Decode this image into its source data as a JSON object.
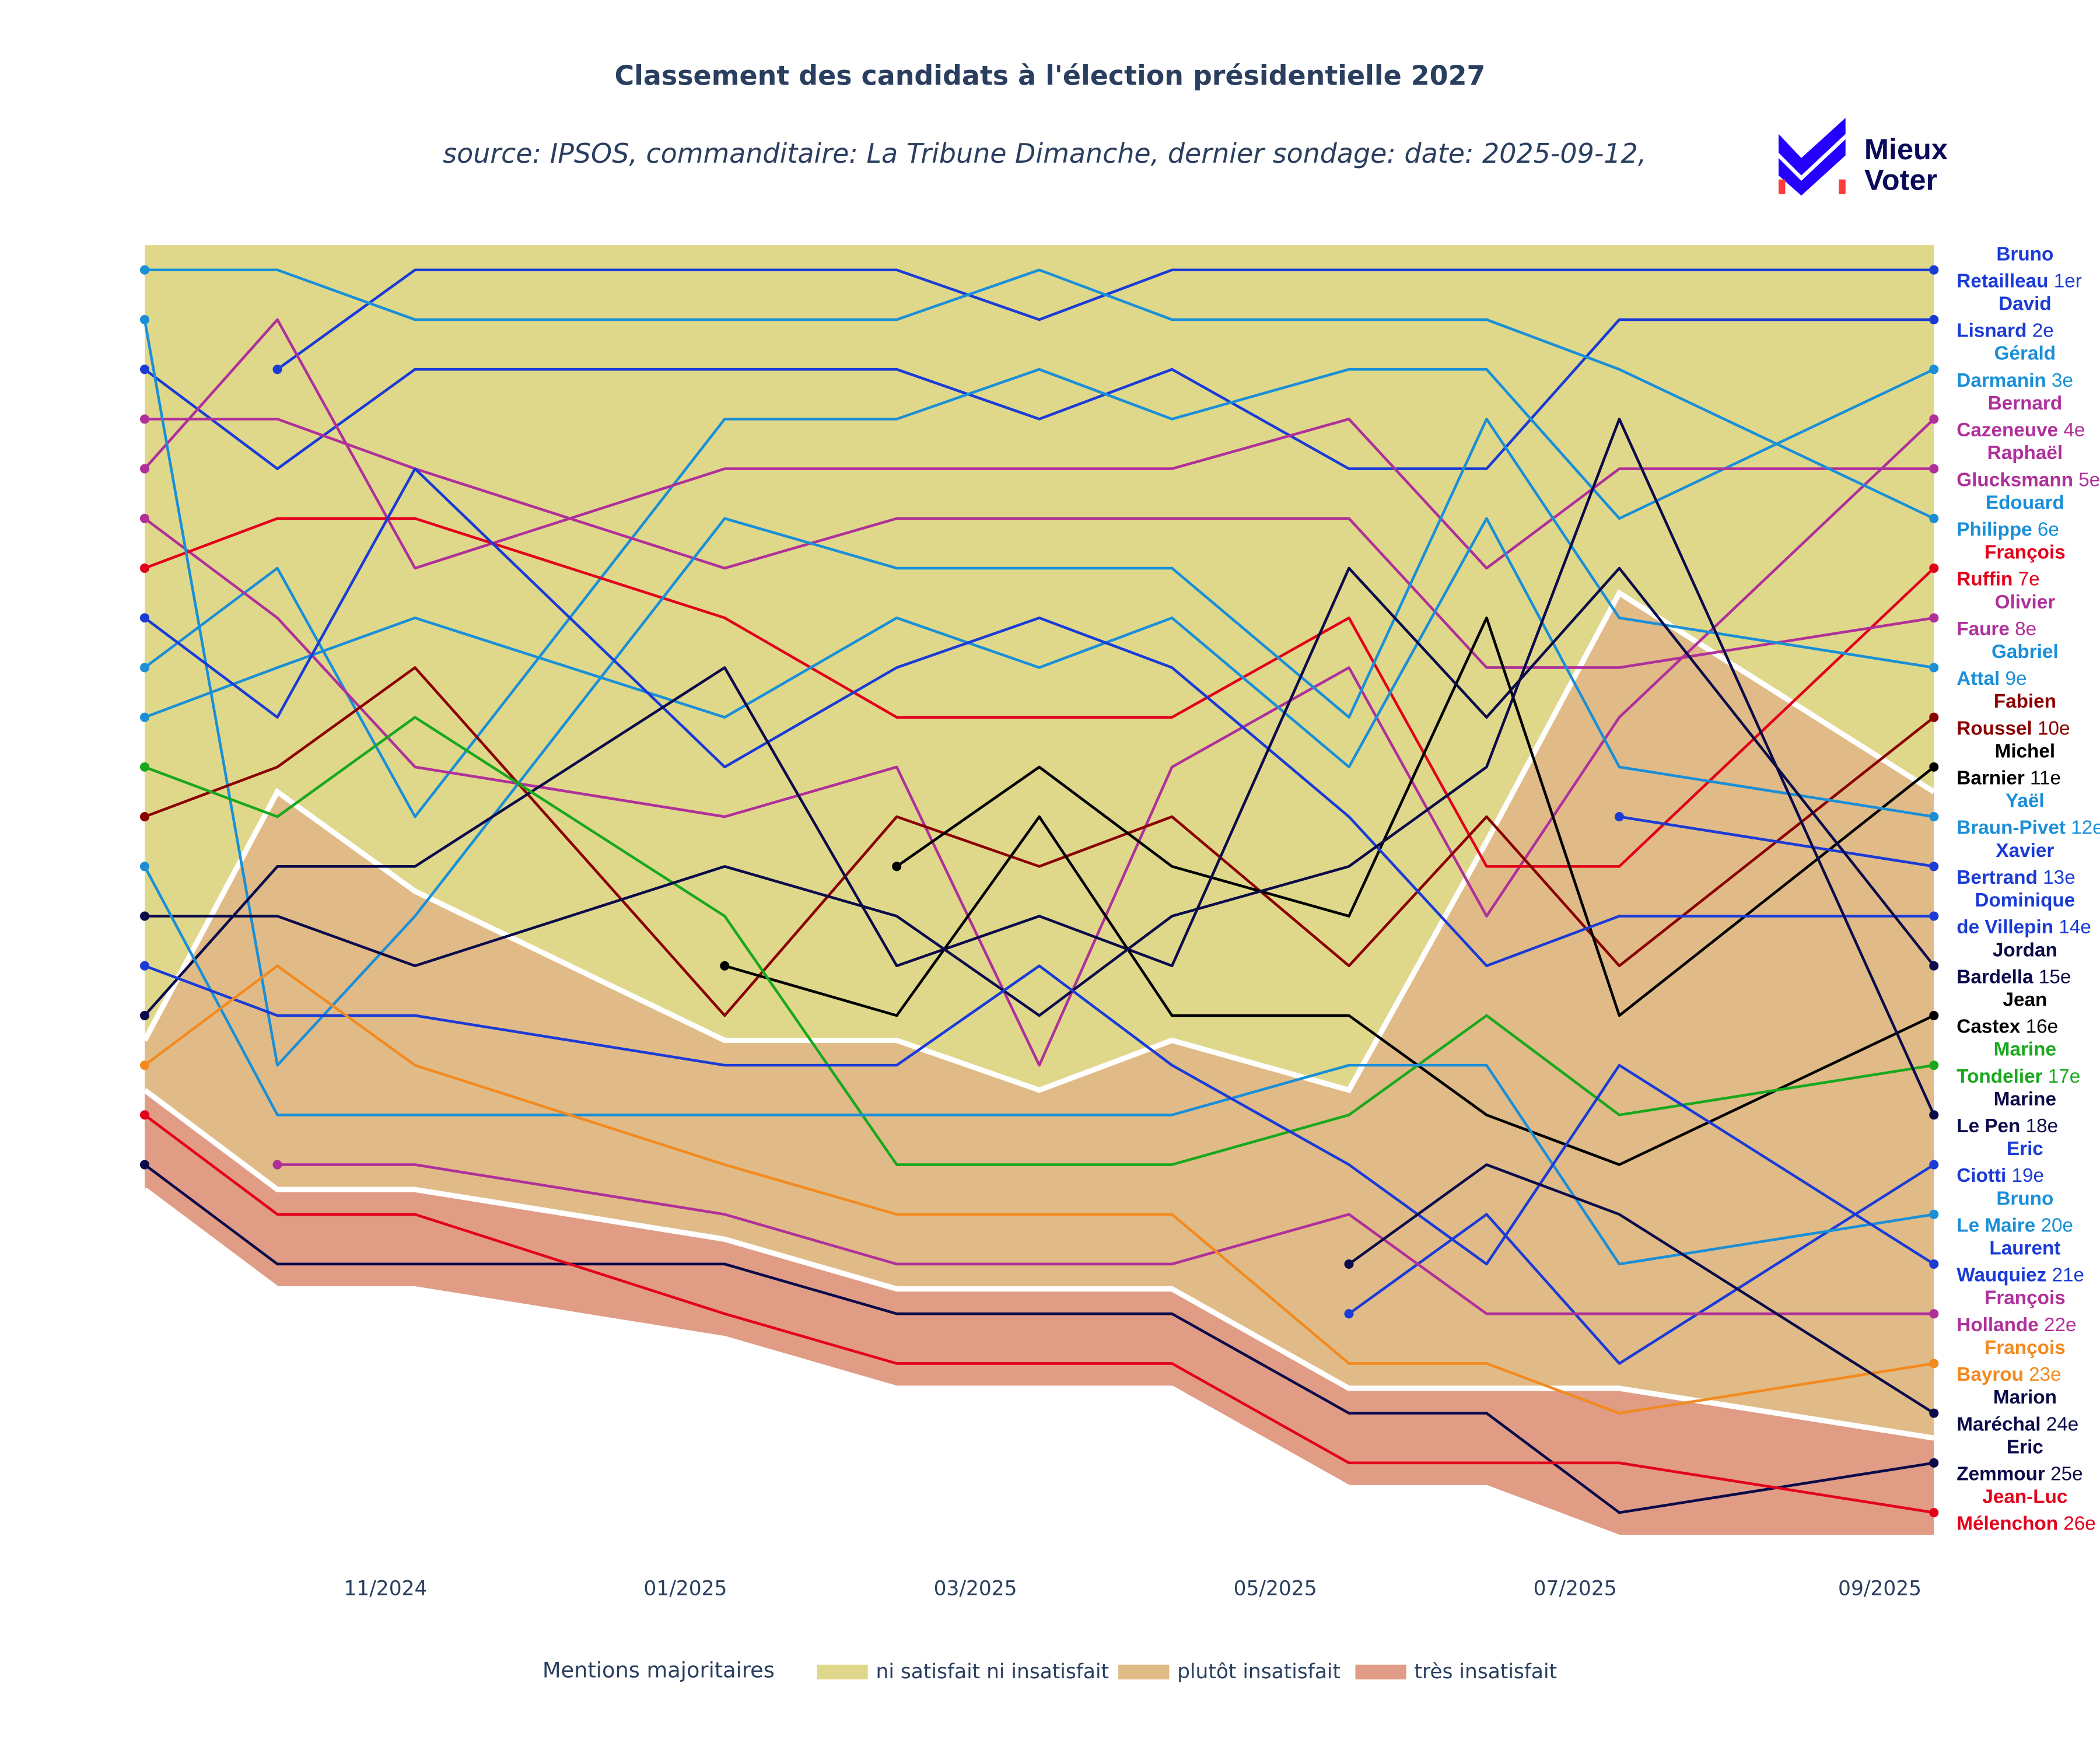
{
  "chart_data": {
    "type": "bump",
    "title": "Classement des candidats à l'élection présidentielle 2027",
    "subtitle": "source: IPSOS, commanditaire: La Tribune Dimanche, dernier sondage: date: 2025-09-12,",
    "logo_text": [
      "Mieux",
      "Voter"
    ],
    "legend_title": "Mentions majoritaires",
    "x": [
      "2024-09-13",
      "2024-10-10",
      "2024-11-07",
      "2025-01-09",
      "2025-02-13",
      "2025-03-14",
      "2025-04-10",
      "2025-05-16",
      "2025-06-13",
      "2025-07-10",
      "2025-09-12"
    ],
    "xlim": [
      "2024-09-13",
      "2025-09-12"
    ],
    "xticks": [
      {
        "value": "2024-11-01",
        "label": "11/2024"
      },
      {
        "value": "2025-01-01",
        "label": "01/2025"
      },
      {
        "value": "2025-03-01",
        "label": "03/2025"
      },
      {
        "value": "2025-05-01",
        "label": "05/2025"
      },
      {
        "value": "2025-07-01",
        "label": "07/2025"
      },
      {
        "value": "2025-09-01",
        "label": "09/2025"
      }
    ],
    "ylim": [
      26.5,
      0.5
    ],
    "bands": [
      {
        "name": "ni satisfait ni insatisfait",
        "color": "#dfd88a",
        "lower": [
          16.5,
          11.5,
          13.5,
          16.5,
          16.5,
          17.5,
          16.5,
          17.5,
          12.5,
          7.5,
          11.5
        ]
      },
      {
        "name": "plutôt insatisfait",
        "color": "#e0bb87",
        "lower": [
          17.5,
          19.5,
          19.5,
          20.5,
          21.5,
          21.5,
          21.5,
          23.5,
          23.5,
          23.5,
          24.5
        ]
      },
      {
        "name": "très insatisfait",
        "color": "#e09c85",
        "lower": [
          19.5,
          21.5,
          21.5,
          22.5,
          23.5,
          23.5,
          23.5,
          25.5,
          25.5,
          26.5,
          26.5
        ]
      }
    ],
    "series": [
      {
        "first_name": "Bruno",
        "last_name": "Retailleau",
        "final_label": "1er",
        "color": "#1a3bd6",
        "values": [
          null,
          3,
          1,
          1,
          1,
          2,
          1,
          1,
          1,
          1,
          1
        ]
      },
      {
        "first_name": "David",
        "last_name": "Lisnard",
        "final_label": "2e",
        "color": "#1a3bd6",
        "values": [
          3,
          5,
          3,
          3,
          3,
          4,
          3,
          5,
          5,
          2,
          2
        ]
      },
      {
        "first_name": "Gérald",
        "last_name": "Darmanin",
        "final_label": "3e",
        "color": "#1a8fd8",
        "values": [
          9,
          7,
          12,
          4,
          4,
          3,
          4,
          3,
          3,
          6,
          3
        ]
      },
      {
        "first_name": "Bernard",
        "last_name": "Cazeneuve",
        "final_label": "4e",
        "color": "#b0309a",
        "values": [
          6,
          8,
          11,
          12,
          11,
          17,
          11,
          9,
          14,
          10,
          4
        ]
      },
      {
        "first_name": "Raphaël",
        "last_name": "Glucksmann",
        "final_label": "5e",
        "color": "#b0309a",
        "values": [
          5,
          2,
          7,
          5,
          5,
          5,
          5,
          4,
          7,
          5,
          5
        ]
      },
      {
        "first_name": "Edouard",
        "last_name": "Philippe",
        "final_label": "6e",
        "color": "#1a8fd8",
        "values": [
          1,
          1,
          2,
          2,
          2,
          1,
          2,
          2,
          2,
          3,
          6
        ]
      },
      {
        "first_name": "François",
        "last_name": "Ruffin",
        "final_label": "7e",
        "color": "#e3001b",
        "values": [
          7,
          6,
          6,
          8,
          10,
          10,
          10,
          8,
          13,
          13,
          7
        ]
      },
      {
        "first_name": "Olivier",
        "last_name": "Faure",
        "final_label": "8e",
        "color": "#b0309a",
        "values": [
          4,
          4,
          5,
          7,
          6,
          6,
          6,
          6,
          9,
          9,
          8
        ]
      },
      {
        "first_name": "Gabriel",
        "last_name": "Attal",
        "final_label": "9e",
        "color": "#1a8fd8",
        "values": [
          2,
          17,
          14,
          6,
          7,
          7,
          7,
          10,
          4,
          8,
          9
        ]
      },
      {
        "first_name": "Fabien",
        "last_name": "Roussel",
        "final_label": "10e",
        "color": "#8b0000",
        "values": [
          12,
          11,
          9,
          16,
          12,
          13,
          12,
          15,
          12,
          15,
          10
        ]
      },
      {
        "first_name": "Michel",
        "last_name": "Barnier",
        "final_label": "11e",
        "color": "#000000",
        "values": [
          null,
          null,
          null,
          null,
          13,
          11,
          13,
          14,
          8,
          16,
          11
        ]
      },
      {
        "first_name": "Yaël",
        "last_name": "Braun-Pivet",
        "final_label": "12e",
        "color": "#1a8fd8",
        "values": [
          10,
          9,
          8,
          10,
          8,
          9,
          8,
          11,
          6,
          11,
          12
        ]
      },
      {
        "first_name": "Xavier",
        "last_name": "Bertrand",
        "final_label": "13e",
        "color": "#1a3bd6",
        "values": [
          null,
          null,
          null,
          null,
          null,
          null,
          null,
          null,
          null,
          12,
          13
        ]
      },
      {
        "first_name": "Dominique",
        "last_name": "de Villepin",
        "final_label": "14e",
        "color": "#1a3bd6",
        "values": [
          8,
          10,
          5,
          11,
          9,
          8,
          9,
          12,
          15,
          14,
          14
        ]
      },
      {
        "first_name": "Jordan",
        "last_name": "Bardella",
        "final_label": "15e",
        "color": "#0b0a4a",
        "values": [
          16,
          13,
          13,
          9,
          15,
          14,
          15,
          7,
          10,
          7,
          15
        ]
      },
      {
        "first_name": "Jean",
        "last_name": "Castex",
        "final_label": "16e",
        "color": "#000000",
        "values": [
          null,
          null,
          null,
          15,
          16,
          12,
          16,
          16,
          18,
          19,
          16
        ]
      },
      {
        "first_name": "Marine",
        "last_name": "Tondelier",
        "final_label": "17e",
        "color": "#19a81e",
        "values": [
          11,
          12,
          10,
          14,
          19,
          19,
          19,
          18,
          16,
          18,
          17
        ]
      },
      {
        "first_name": "Marine",
        "last_name": "Le Pen",
        "final_label": "18e",
        "color": "#0b0a4a",
        "values": [
          14,
          14,
          15,
          13,
          14,
          16,
          14,
          13,
          11,
          4,
          18
        ]
      },
      {
        "first_name": "Eric",
        "last_name": "Ciotti",
        "final_label": "19e",
        "color": "#1a3bd6",
        "values": [
          null,
          null,
          null,
          null,
          null,
          null,
          null,
          22,
          20,
          23,
          19
        ]
      },
      {
        "first_name": "Bruno",
        "last_name": "Le Maire",
        "final_label": "20e",
        "color": "#1a8fd8",
        "values": [
          13,
          18,
          18,
          18,
          18,
          18,
          18,
          17,
          17,
          21,
          20
        ]
      },
      {
        "first_name": "Laurent",
        "last_name": "Wauquiez",
        "final_label": "21e",
        "color": "#1a3bd6",
        "values": [
          15,
          16,
          16,
          17,
          17,
          15,
          17,
          19,
          21,
          17,
          21
        ]
      },
      {
        "first_name": "François",
        "last_name": "Hollande",
        "final_label": "22e",
        "color": "#b0309a",
        "values": [
          null,
          19,
          19,
          20,
          21,
          21,
          21,
          20,
          22,
          22,
          22
        ]
      },
      {
        "first_name": "François",
        "last_name": "Bayrou",
        "final_label": "23e",
        "color": "#f28a20",
        "values": [
          17,
          15,
          17,
          19,
          20,
          20,
          20,
          23,
          23,
          24,
          23
        ]
      },
      {
        "first_name": "Marion",
        "last_name": "Maréchal",
        "final_label": "24e",
        "color": "#0b0a4a",
        "values": [
          null,
          null,
          null,
          null,
          null,
          null,
          null,
          21,
          19,
          20,
          24
        ]
      },
      {
        "first_name": "Eric",
        "last_name": "Zemmour",
        "final_label": "25e",
        "color": "#0b0a4a",
        "values": [
          19,
          21,
          21,
          21,
          22,
          22,
          22,
          24,
          24,
          26,
          25
        ]
      },
      {
        "first_name": "Jean-Luc",
        "last_name": "Mélenchon",
        "final_label": "26e",
        "color": "#e3001b",
        "values": [
          18,
          20,
          20,
          22,
          23,
          23,
          23,
          25,
          25,
          25,
          26
        ]
      }
    ]
  }
}
